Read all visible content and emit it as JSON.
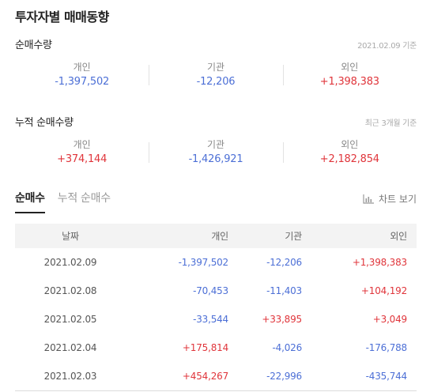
{
  "title": "투자자별 매매동향",
  "net": {
    "title": "순매수량",
    "note": "2021.02.09 기준",
    "items": [
      {
        "label": "개인",
        "value": "-1,397,502",
        "sign": "neg"
      },
      {
        "label": "기관",
        "value": "-12,206",
        "sign": "neg"
      },
      {
        "label": "외인",
        "value": "+1,398,383",
        "sign": "pos"
      }
    ]
  },
  "cumulative": {
    "title": "누적 순매수량",
    "note": "최근 3개월 기준",
    "items": [
      {
        "label": "개인",
        "value": "+374,144",
        "sign": "pos"
      },
      {
        "label": "기관",
        "value": "-1,426,921",
        "sign": "neg"
      },
      {
        "label": "외인",
        "value": "+2,182,854",
        "sign": "pos"
      }
    ]
  },
  "tabs": [
    {
      "label": "순매수",
      "active": true
    },
    {
      "label": "누적 순매수",
      "active": false
    }
  ],
  "chart_button": {
    "label": "차트 보기",
    "icon": "bar-chart-icon"
  },
  "table": {
    "headers": [
      "날짜",
      "개인",
      "기관",
      "외인"
    ],
    "rows": [
      [
        "2021.02.09",
        "-1,397,502",
        "-12,206",
        "+1,398,383"
      ],
      [
        "2021.02.08",
        "-70,453",
        "-11,403",
        "+104,192"
      ],
      [
        "2021.02.05",
        "-33,544",
        "+33,895",
        "+3,049"
      ],
      [
        "2021.02.04",
        "+175,814",
        "-4,026",
        "-176,788"
      ],
      [
        "2021.02.03",
        "+454,267",
        "-22,996",
        "-435,744"
      ]
    ]
  },
  "colors": {
    "positive": "#e0353b",
    "negative": "#4c6fd6"
  }
}
